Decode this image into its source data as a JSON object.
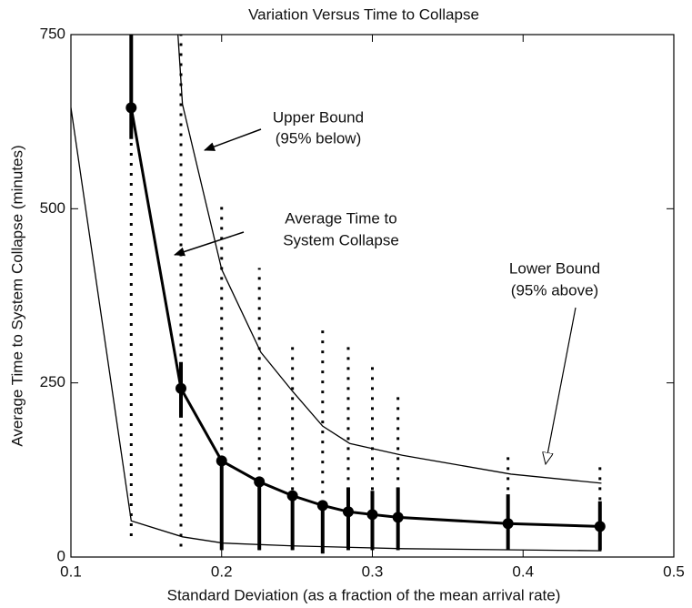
{
  "chart_data": {
    "type": "line",
    "title": "Variation Versus Time to Collapse",
    "x_label": "Standard Deviation (as a fraction of the mean arrival rate)",
    "y_label": "Average Time to System Collapse (minutes)",
    "xlim": [
      0.1,
      0.5
    ],
    "xticks": [
      0.1,
      0.2,
      0.3,
      0.4,
      0.5
    ],
    "ylim": [
      0,
      750
    ],
    "yticks": [
      0,
      250,
      500,
      750
    ],
    "average": {
      "x": [
        0.14,
        0.173,
        0.2,
        0.225,
        0.247,
        0.267,
        0.284,
        0.3,
        0.317,
        0.39,
        0.451
      ],
      "values": [
        645,
        242,
        138,
        108,
        88,
        74,
        65,
        61,
        57,
        48,
        44
      ],
      "bar_low": [
        600,
        200,
        10,
        10,
        10,
        5,
        10,
        10,
        10,
        10,
        10
      ],
      "bar_high": [
        750,
        280,
        140,
        110,
        90,
        75,
        100,
        95,
        100,
        90,
        80
      ],
      "dot_low": [
        30,
        15,
        10,
        10,
        10,
        5,
        10,
        10,
        10,
        10,
        10
      ],
      "dot_high": [
        750,
        750,
        505,
        415,
        305,
        335,
        310,
        275,
        235,
        150,
        130
      ],
      "color": "#000000"
    },
    "upper": {
      "x": [
        0.171,
        0.174,
        0.2,
        0.226,
        0.247,
        0.267,
        0.285,
        0.32,
        0.392,
        0.452
      ],
      "values": [
        750,
        650,
        413,
        294,
        238,
        188,
        163,
        146,
        119,
        106
      ],
      "color": "#000000"
    },
    "lower": {
      "x": [
        0.1,
        0.14,
        0.174,
        0.201,
        0.247,
        0.32,
        0.452
      ],
      "values": [
        645,
        52,
        29,
        20,
        16,
        12,
        9
      ],
      "color": "#000000"
    },
    "annotations": [
      {
        "lines": [
          "Upper Bound",
          "(95% below)"
        ]
      },
      {
        "lines": [
          "Average Time to",
          "System Collapse"
        ]
      },
      {
        "lines": [
          "Lower Bound",
          "(95% above)"
        ]
      }
    ]
  }
}
